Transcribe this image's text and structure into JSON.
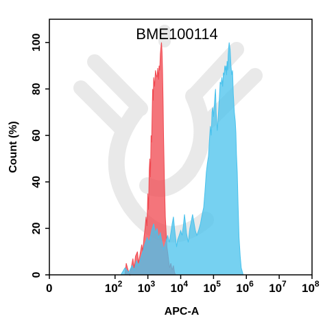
{
  "chart_data": {
    "type": "area",
    "title": "BME100114",
    "xlabel": "APC-A",
    "ylabel": "Count  (%)",
    "x_scale": "log",
    "xlim": [
      1,
      100000000
    ],
    "ylim": [
      0,
      110
    ],
    "x_ticks": [
      {
        "value": 1,
        "base": "0",
        "exp": ""
      },
      {
        "value": 100,
        "base": "10",
        "exp": "2"
      },
      {
        "value": 1000,
        "base": "10",
        "exp": "3"
      },
      {
        "value": 10000,
        "base": "10",
        "exp": "4"
      },
      {
        "value": 100000,
        "base": "10",
        "exp": "5"
      },
      {
        "value": 1000000,
        "base": "10",
        "exp": "6"
      },
      {
        "value": 10000000,
        "base": "10",
        "exp": "7"
      },
      {
        "value": 100000000,
        "base": "10",
        "exp": "8"
      }
    ],
    "y_ticks": [
      "0",
      "20",
      "40",
      "60",
      "80",
      "100"
    ],
    "grid": false,
    "watermark": "antibody-icon",
    "series": [
      {
        "color": "#f0474f",
        "fill_opacity": 0.75,
        "points": [
          [
            200,
            0
          ],
          [
            220,
            5
          ],
          [
            250,
            2
          ],
          [
            280,
            0
          ],
          [
            320,
            4
          ],
          [
            350,
            7
          ],
          [
            380,
            3
          ],
          [
            420,
            8
          ],
          [
            480,
            10
          ],
          [
            520,
            5
          ],
          [
            580,
            9
          ],
          [
            650,
            13
          ],
          [
            700,
            10
          ],
          [
            760,
            16
          ],
          [
            820,
            20
          ],
          [
            880,
            25
          ],
          [
            940,
            21
          ],
          [
            1000,
            35
          ],
          [
            1050,
            28
          ],
          [
            1100,
            45
          ],
          [
            1150,
            50
          ],
          [
            1200,
            42
          ],
          [
            1250,
            60
          ],
          [
            1300,
            57
          ],
          [
            1350,
            70
          ],
          [
            1400,
            80
          ],
          [
            1450,
            75
          ],
          [
            1500,
            85
          ],
          [
            1600,
            81
          ],
          [
            1700,
            88
          ],
          [
            1800,
            86
          ],
          [
            1900,
            85
          ],
          [
            2000,
            89
          ],
          [
            2100,
            84
          ],
          [
            2200,
            90
          ],
          [
            2300,
            88
          ],
          [
            2400,
            95
          ],
          [
            2500,
            98
          ],
          [
            2600,
            100
          ],
          [
            2700,
            96
          ],
          [
            2800,
            88
          ],
          [
            2900,
            75
          ],
          [
            3000,
            60
          ],
          [
            3200,
            40
          ],
          [
            3400,
            25
          ],
          [
            3600,
            18
          ],
          [
            3800,
            12
          ],
          [
            4000,
            10
          ],
          [
            4300,
            6
          ],
          [
            4600,
            3
          ],
          [
            5000,
            5
          ],
          [
            5500,
            2
          ],
          [
            6000,
            4
          ],
          [
            6500,
            1
          ],
          [
            7000,
            0
          ]
        ]
      },
      {
        "color": "#48c1ec",
        "fill_opacity": 0.75,
        "points": [
          [
            150,
            0
          ],
          [
            200,
            3
          ],
          [
            260,
            1
          ],
          [
            330,
            4
          ],
          [
            380,
            2
          ],
          [
            450,
            6
          ],
          [
            520,
            4
          ],
          [
            600,
            7
          ],
          [
            700,
            10
          ],
          [
            800,
            13
          ],
          [
            950,
            16
          ],
          [
            1100,
            14
          ],
          [
            1300,
            19
          ],
          [
            1500,
            22
          ],
          [
            1700,
            18
          ],
          [
            1900,
            20
          ],
          [
            2100,
            16
          ],
          [
            2400,
            18
          ],
          [
            2700,
            14
          ],
          [
            3000,
            11
          ],
          [
            3500,
            14
          ],
          [
            4000,
            17
          ],
          [
            4500,
            14
          ],
          [
            5000,
            18
          ],
          [
            5500,
            22
          ],
          [
            6000,
            25
          ],
          [
            6500,
            20
          ],
          [
            7000,
            16
          ],
          [
            7500,
            12
          ],
          [
            8000,
            15
          ],
          [
            9000,
            17
          ],
          [
            10000,
            19
          ],
          [
            11000,
            17
          ],
          [
            12000,
            21
          ],
          [
            13000,
            26
          ],
          [
            14000,
            22
          ],
          [
            15000,
            18
          ],
          [
            17000,
            14
          ],
          [
            19000,
            20
          ],
          [
            21000,
            23
          ],
          [
            23000,
            26
          ],
          [
            25000,
            23
          ],
          [
            28000,
            19
          ],
          [
            31000,
            17
          ],
          [
            35000,
            19
          ],
          [
            40000,
            22
          ],
          [
            45000,
            26
          ],
          [
            50000,
            29
          ],
          [
            55000,
            36
          ],
          [
            60000,
            44
          ],
          [
            65000,
            48
          ],
          [
            70000,
            51
          ],
          [
            75000,
            58
          ],
          [
            80000,
            64
          ],
          [
            85000,
            60
          ],
          [
            90000,
            70
          ],
          [
            95000,
            72
          ],
          [
            100000,
            68
          ],
          [
            110000,
            77
          ],
          [
            115000,
            80
          ],
          [
            120000,
            70
          ],
          [
            130000,
            62
          ],
          [
            140000,
            69
          ],
          [
            150000,
            76
          ],
          [
            160000,
            83
          ],
          [
            170000,
            82
          ],
          [
            180000,
            85
          ],
          [
            190000,
            81
          ],
          [
            200000,
            87
          ],
          [
            210000,
            86
          ],
          [
            220000,
            90
          ],
          [
            230000,
            88
          ],
          [
            240000,
            90
          ],
          [
            250000,
            86
          ],
          [
            260000,
            92
          ],
          [
            270000,
            88
          ],
          [
            280000,
            95
          ],
          [
            290000,
            98
          ],
          [
            300000,
            100
          ],
          [
            320000,
            97
          ],
          [
            340000,
            90
          ],
          [
            360000,
            86
          ],
          [
            380000,
            88
          ],
          [
            400000,
            78
          ],
          [
            430000,
            70
          ],
          [
            460000,
            66
          ],
          [
            480000,
            61
          ],
          [
            500000,
            52
          ],
          [
            530000,
            44
          ],
          [
            560000,
            30
          ],
          [
            600000,
            16
          ],
          [
            650000,
            8
          ],
          [
            700000,
            3
          ],
          [
            800000,
            0
          ]
        ]
      }
    ]
  }
}
